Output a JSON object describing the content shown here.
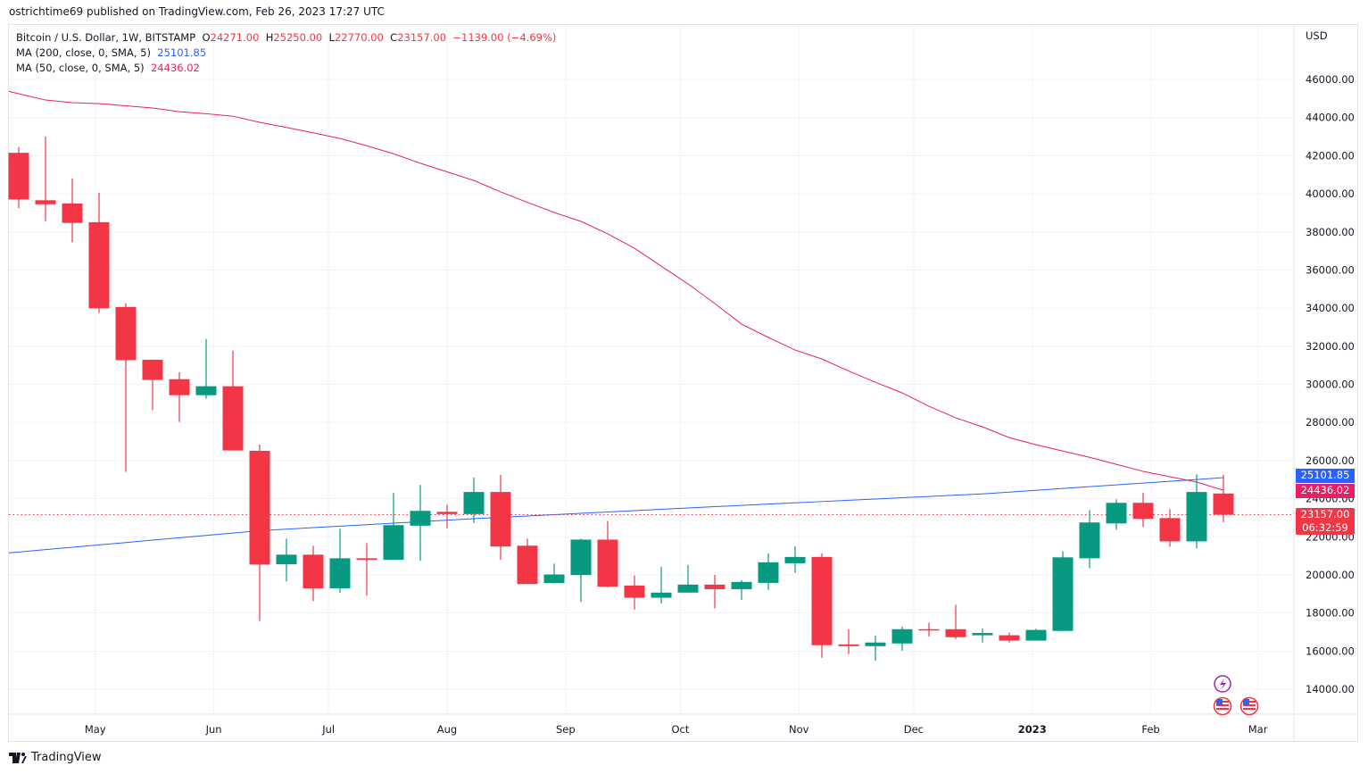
{
  "header": {
    "published": "ostrichtime69 published on TradingView.com, Feb 26, 2023 17:27 UTC"
  },
  "legend": {
    "symbol": "Bitcoin / U.S. Dollar, 1W, BITSTAMP",
    "o_label": "O",
    "o": "24271.00",
    "h_label": "H",
    "h": "25250.00",
    "l_label": "L",
    "l": "22770.00",
    "c_label": "C",
    "c": "23157.00",
    "change": "−1139.00 (−4.69%)",
    "ma200_label": "MA (200, close, 0, SMA, 5)",
    "ma200_value": "25101.85",
    "ma50_label": "MA (50, close, 0, SMA, 5)",
    "ma50_value": "24436.02"
  },
  "price_axis": {
    "currency": "USD",
    "countdown": "06:32:59"
  },
  "footer": {
    "brand": "TradingView"
  },
  "colors": {
    "up": "#089981",
    "down": "#f23645",
    "ma200": "#2962ff",
    "ma50": "#e91e63",
    "events": "#9c27b0"
  },
  "icons": [
    "lightning-event-icon",
    "us-flag-event-icon",
    "us-flag-event-icon"
  ],
  "chart_data": {
    "type": "candlestick",
    "interval": "1W",
    "ylim": [
      13000,
      47500
    ],
    "grid": true,
    "yticks": [
      14000,
      16000,
      18000,
      20000,
      22000,
      24000,
      26000,
      28000,
      30000,
      32000,
      34000,
      36000,
      38000,
      40000,
      42000,
      44000,
      46000
    ],
    "ytick_labels": [
      "14000.00",
      "16000.00",
      "18000.00",
      "20000.00",
      "22000.00",
      "24000.00",
      "26000.00",
      "28000.00",
      "30000.00",
      "32000.00",
      "34000.00",
      "36000.00",
      "38000.00",
      "40000.00",
      "42000.00",
      "44000.00",
      "46000.00"
    ],
    "xticks": [
      {
        "date": "2022-05-01",
        "label": "May"
      },
      {
        "date": "2022-06-01",
        "label": "Jun"
      },
      {
        "date": "2022-07-01",
        "label": "Jul"
      },
      {
        "date": "2022-08-01",
        "label": "Aug"
      },
      {
        "date": "2022-09-01",
        "label": "Sep"
      },
      {
        "date": "2022-10-01",
        "label": "Oct"
      },
      {
        "date": "2022-11-01",
        "label": "Nov"
      },
      {
        "date": "2022-12-01",
        "label": "Dec"
      },
      {
        "date": "2023-01-01",
        "label": "2023"
      },
      {
        "date": "2023-02-01",
        "label": "Feb"
      },
      {
        "date": "2023-03-01",
        "label": "Mar"
      }
    ],
    "candles_columns": [
      "date",
      "open",
      "high",
      "low",
      "close"
    ],
    "candles": [
      [
        "2022-04-11",
        42150,
        42450,
        39250,
        39700
      ],
      [
        "2022-04-18",
        39660,
        43000,
        38560,
        39450
      ],
      [
        "2022-04-25",
        39490,
        40800,
        37450,
        38470
      ],
      [
        "2022-05-02",
        38510,
        40050,
        33750,
        33990
      ],
      [
        "2022-05-09",
        34060,
        34250,
        25400,
        31270
      ],
      [
        "2022-05-16",
        31290,
        31300,
        28640,
        30230
      ],
      [
        "2022-05-23",
        30270,
        30640,
        28030,
        29430
      ],
      [
        "2022-05-30",
        29430,
        32380,
        29250,
        29900
      ],
      [
        "2022-06-06",
        29900,
        31770,
        26520,
        26530
      ],
      [
        "2022-06-13",
        26510,
        26840,
        17580,
        20540
      ],
      [
        "2022-06-20",
        20560,
        21900,
        19660,
        21060
      ],
      [
        "2022-06-27",
        21060,
        21530,
        18630,
        19290
      ],
      [
        "2022-07-04",
        19290,
        22420,
        19050,
        20870
      ],
      [
        "2022-07-11",
        20870,
        21670,
        18910,
        20790
      ],
      [
        "2022-07-18",
        20790,
        24300,
        20790,
        22610
      ],
      [
        "2022-07-25",
        22580,
        24720,
        20740,
        23360
      ],
      [
        "2022-08-01",
        23310,
        23690,
        22430,
        23190
      ],
      [
        "2022-08-08",
        23190,
        25100,
        22720,
        24350
      ],
      [
        "2022-08-15",
        24350,
        25240,
        20790,
        21490
      ],
      [
        "2022-08-22",
        21530,
        21900,
        19520,
        19520
      ],
      [
        "2022-08-29",
        19570,
        20590,
        19570,
        20020
      ],
      [
        "2022-09-05",
        19990,
        21900,
        18580,
        21850
      ],
      [
        "2022-09-12",
        21850,
        22830,
        19350,
        19380
      ],
      [
        "2022-09-19",
        19440,
        19960,
        18180,
        18800
      ],
      [
        "2022-09-26",
        18800,
        20420,
        18510,
        19070
      ],
      [
        "2022-10-03",
        19070,
        20520,
        19050,
        19490
      ],
      [
        "2022-10-10",
        19490,
        20000,
        18240,
        19250
      ],
      [
        "2022-10-17",
        19250,
        19720,
        18690,
        19630
      ],
      [
        "2022-10-24",
        19580,
        21130,
        19210,
        20660
      ],
      [
        "2022-10-31",
        20610,
        21500,
        20100,
        20940
      ],
      [
        "2022-11-07",
        20940,
        21130,
        15650,
        16310
      ],
      [
        "2022-11-14",
        16350,
        17150,
        15840,
        16260
      ],
      [
        "2022-11-21",
        16260,
        16820,
        15510,
        16450
      ],
      [
        "2022-11-28",
        16400,
        17290,
        16020,
        17150
      ],
      [
        "2022-12-05",
        17150,
        17490,
        16770,
        17100
      ],
      [
        "2022-12-12",
        17150,
        18430,
        16640,
        16730
      ],
      [
        "2022-12-19",
        16830,
        17180,
        16450,
        16950
      ],
      [
        "2022-12-26",
        16830,
        16970,
        16450,
        16550
      ],
      [
        "2023-01-02",
        16550,
        17170,
        16550,
        17110
      ],
      [
        "2023-01-09",
        17060,
        21240,
        17060,
        20920
      ],
      [
        "2023-01-16",
        20870,
        23400,
        20350,
        22750
      ],
      [
        "2023-01-23",
        22700,
        23970,
        22370,
        23780
      ],
      [
        "2023-01-30",
        23780,
        24300,
        22510,
        22940
      ],
      [
        "2023-02-06",
        22980,
        23450,
        21480,
        21760
      ],
      [
        "2023-02-13",
        21760,
        25280,
        21390,
        24350
      ],
      [
        "2023-02-20",
        24271,
        25250,
        22770,
        23157
      ]
    ],
    "series": [
      {
        "name": "MA (200, close, 0, SMA, 5)",
        "values": [
          21200,
          21324,
          21449,
          21573,
          21698,
          21822,
          21947,
          22071,
          22196,
          22320,
          22399,
          22478,
          22556,
          22635,
          22714,
          22793,
          22871,
          22950,
          23020,
          23090,
          23160,
          23230,
          23300,
          23370,
          23440,
          23510,
          23580,
          23647,
          23714,
          23781,
          23848,
          23915,
          23982,
          24049,
          24116,
          24183,
          24250,
          24345,
          24439,
          24534,
          24628,
          24723,
          24817,
          24912,
          25007,
          25102
        ]
      },
      {
        "name": "MA (50, close, 0, SMA, 5)",
        "values": [
          45250,
          44920,
          44780,
          44730,
          44620,
          44500,
          44310,
          44200,
          44070,
          43750,
          43480,
          43200,
          42900,
          42520,
          42100,
          41600,
          41150,
          40700,
          40100,
          39550,
          39020,
          38550,
          37900,
          37140,
          36200,
          35270,
          34240,
          33160,
          32460,
          31800,
          31330,
          30700,
          30110,
          29550,
          28850,
          28240,
          27770,
          27200,
          26830,
          26500,
          26170,
          25800,
          25430,
          25150,
          24870,
          24436
        ]
      }
    ],
    "last_price": "23157.00",
    "ma200_last": "25101.85",
    "ma50_last": "24436.02"
  }
}
